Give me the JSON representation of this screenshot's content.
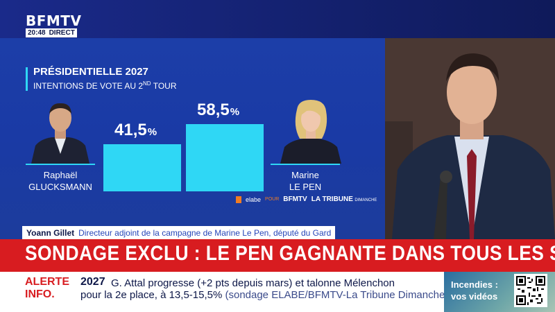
{
  "channel": {
    "logo": "BFMTV",
    "time": "20:48",
    "live_label": "DIRECT"
  },
  "graphic": {
    "title": "PRÉSIDENTIELLE 2027",
    "subtitle_main": "INTENTIONS DE VOTE AU 2",
    "subtitle_sup": "ND",
    "subtitle_end": " TOUR",
    "accent_color": "#2fd7f5",
    "bar_color": "#2fd7f5",
    "candidates": [
      {
        "first": "Raphaël",
        "last": "GLUCKSMANN",
        "value_label": "41,5",
        "unit": "%"
      },
      {
        "first": "Marine",
        "last": "LE PEN",
        "value_label": "58,5",
        "unit": "%"
      }
    ],
    "sources": {
      "pollster": "elabe",
      "pour": "POUR",
      "client1": "BFMTV",
      "client2": "LA TRIBUNE",
      "client2_sub": "DIMANCHE"
    }
  },
  "chart_data": {
    "type": "bar",
    "categories": [
      "Raphaël GLUCKSMANN",
      "Marine LE PEN"
    ],
    "values": [
      41.5,
      58.5
    ],
    "title": "PRÉSIDENTIELLE 2027",
    "subtitle": "INTENTIONS DE VOTE AU 2ND TOUR",
    "ylim": [
      0,
      100
    ]
  },
  "nameplate": {
    "name": "Yoann Gillet",
    "role": "Directeur adjoint de la campagne de Marine Le Pen, député du Gard"
  },
  "headline": "SONDAGE EXCLU : LE PEN GAGNANTE DANS TOUS LES SCÉNARIOS",
  "ticker": {
    "alert_line1": "ALERTE",
    "alert_line2": "INFO.",
    "year": "2027",
    "line1": "G. Attal progresse (+2 pts depuis mars) et talonne Mélenchon",
    "line2_main": "pour la 2e place, à 13,5-15,5%",
    "line2_source": " (sondage ELABE/BFMTV-La Tribune Dimanche)"
  },
  "promo": {
    "line1": "Incendies :",
    "line2": "vos vidéos"
  },
  "colors": {
    "headline_red": "#d81c20",
    "navy": "#0d1748",
    "panel_blue": "#1c3ea8"
  }
}
